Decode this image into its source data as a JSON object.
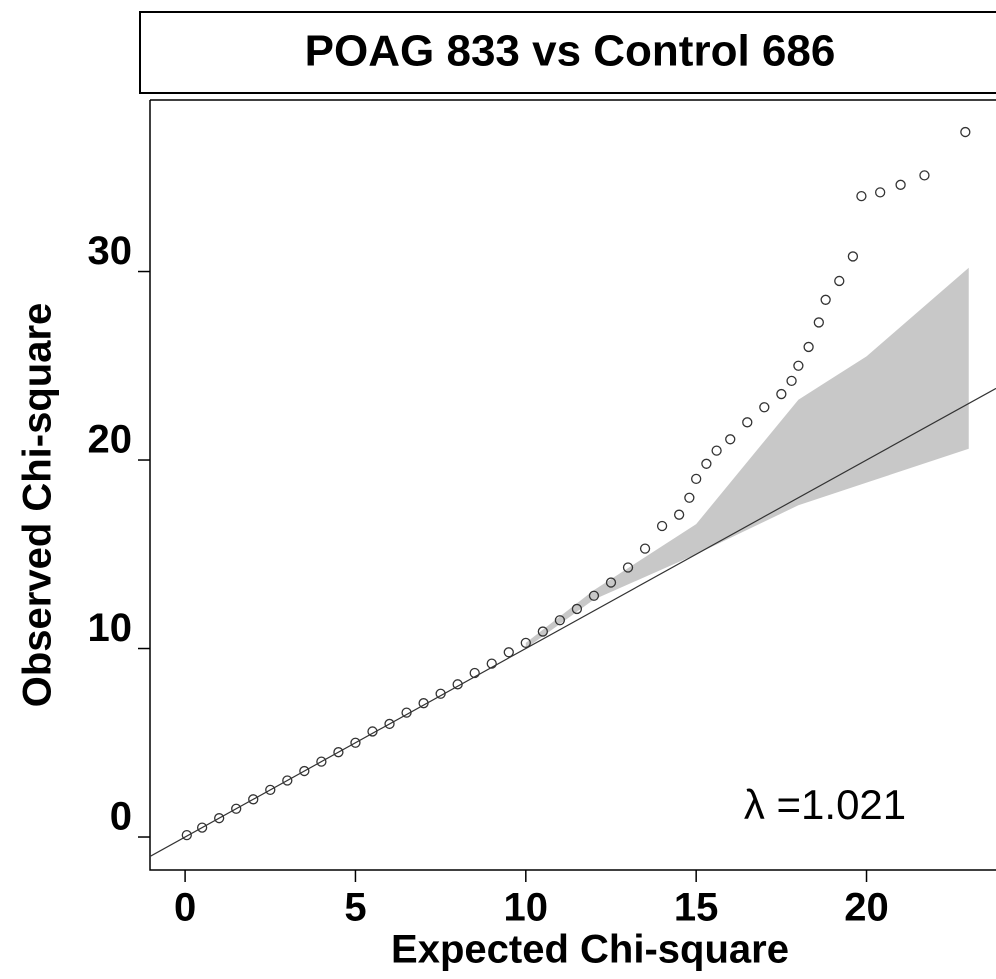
{
  "chart_data": {
    "type": "scatter",
    "title": "POAG 833 vs Control 686",
    "xlabel": "Expected Chi-square",
    "ylabel": "Observed Chi-square",
    "annotation": "λ =1.021",
    "xlim": [
      -1.03,
      23.8
    ],
    "ylim": [
      -1.75,
      39.1
    ],
    "xticks": [
      0,
      5,
      10,
      15,
      20
    ],
    "yticks": [
      0,
      10,
      20,
      30
    ],
    "diagonal": true,
    "color": "#333333",
    "band_color": "#c8c8c8",
    "x": [
      0.05,
      0.5,
      1,
      1.5,
      2,
      2.5,
      3,
      3.5,
      4,
      4.5,
      5,
      5.5,
      6,
      6.5,
      7,
      7.5,
      8,
      8.5,
      9,
      9.5,
      10,
      10.5,
      11,
      11.5,
      12,
      12.5,
      13,
      13.5,
      14,
      14.5,
      14.8,
      15,
      15.3,
      15.6,
      16,
      16.5,
      17,
      17.5,
      17.8,
      18,
      18.3,
      18.6,
      18.8,
      19.2,
      19.6,
      19.85,
      20.4,
      21,
      21.7,
      22.9
    ],
    "y": [
      0.1,
      0.5,
      1,
      1.5,
      2,
      2.5,
      3,
      3.5,
      4,
      4.5,
      5,
      5.6,
      6,
      6.6,
      7.1,
      7.6,
      8.1,
      8.7,
      9.2,
      9.8,
      10.3,
      10.9,
      11.5,
      12.1,
      12.8,
      13.5,
      14.3,
      15.3,
      16.5,
      17.1,
      18,
      19,
      19.8,
      20.5,
      21.1,
      22,
      22.8,
      23.5,
      24.2,
      25,
      26,
      27.3,
      28.5,
      29.5,
      30.8,
      34,
      34.2,
      34.6,
      35.1,
      37.4
    ],
    "band": {
      "x": [
        10,
        12,
        15,
        18,
        20,
        23
      ],
      "lower": [
        10,
        12.6,
        15,
        17.6,
        18.8,
        20.6
      ],
      "upper": [
        10.3,
        13.1,
        16.6,
        23.2,
        25.5,
        30.2
      ]
    }
  }
}
